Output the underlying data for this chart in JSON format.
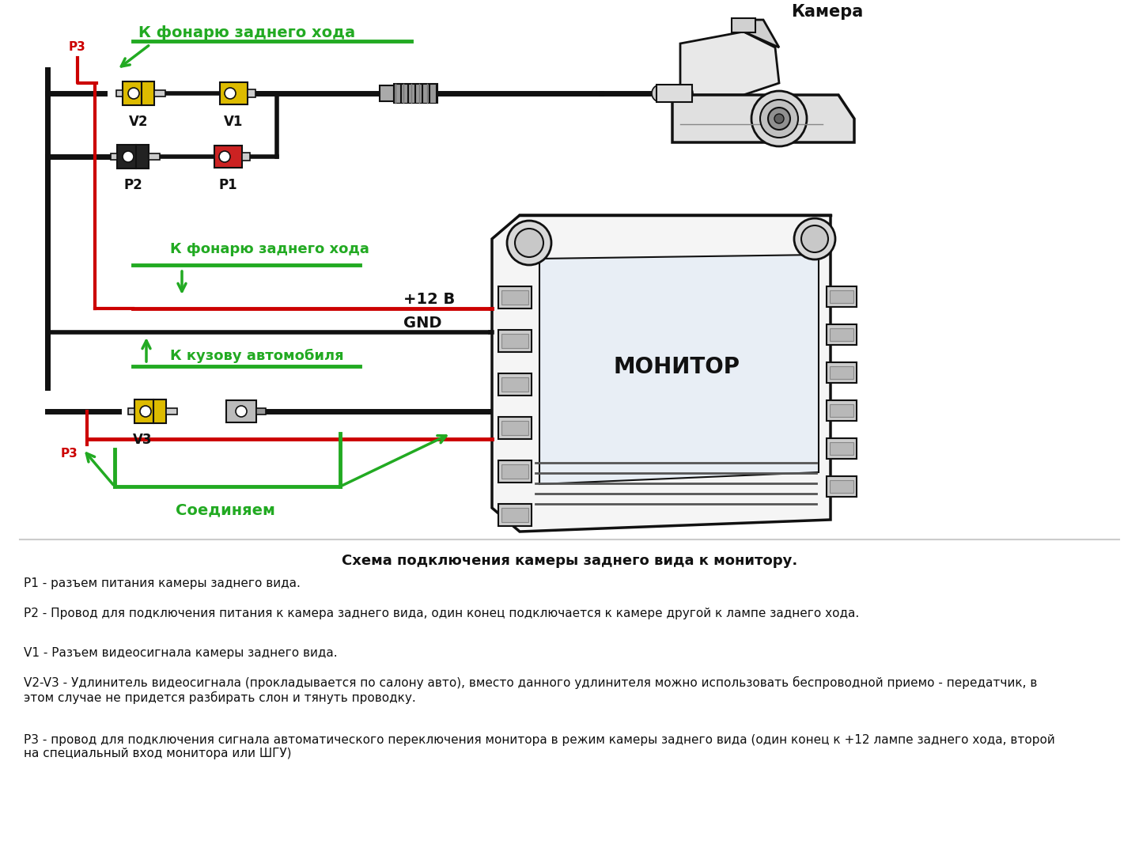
{
  "bg_color": "#ffffff",
  "label_camera": "Камера",
  "label_monitor": "МОНИТОР",
  "label_v1": "V1",
  "label_v2": "V2",
  "label_v3": "V3",
  "label_p1": "P1",
  "label_p2": "P2",
  "label_p3": "P3",
  "label_back_light_top": "К фонарю заднего хода",
  "label_back_light_mid": "К фонарю заднего хода",
  "label_body": "К кузову автомобиля",
  "label_connect": "Соединяем",
  "label_12v": "+12 В",
  "label_gnd": "GND",
  "color_green": "#22aa22",
  "color_red": "#cc0000",
  "color_black": "#111111",
  "color_yellow": "#ddbb00",
  "color_gray": "#888888",
  "color_lightgray": "#cccccc",
  "desc_title": "Схема подключения камеры заднего вида к монитору.",
  "desc_p1": "Р1 - разъем питания камеры заднего вида.",
  "desc_p2": "Р2 - Провод для подключения питания к камера заднего вида, один конец подключается к камере другой к лампе заднего хода.",
  "desc_v1": "V1 - Разъем видеосигнала камеры заднего вида.",
  "desc_v2v3": "V2-V3 - Удлинитель видеосигнала (прокладывается по салону авто), вместо данного удлинителя можно использовать беспроводной приемо - передатчик, в\nэтом случае не придется разбирать слон и тянуть проводку.",
  "desc_p3": "Р3 - провод для подключения сигнала автоматического переключения монитора в режим камеры заднего вида (один конец к +12 лампе заднего хода, второй\nна специальный вход монитора или ШГУ)"
}
